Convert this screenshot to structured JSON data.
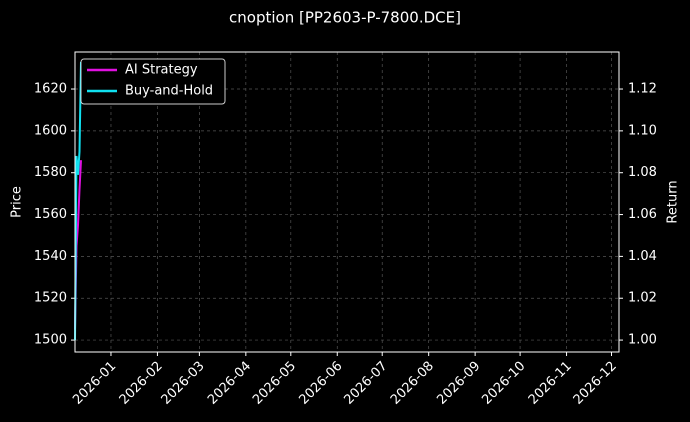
{
  "chart_data": {
    "type": "line",
    "title": "cnoption [PP2603-P-7800.DCE]",
    "ylabel": "Price",
    "y2label": "Return",
    "x": [
      "2025-12-08",
      "2025-12-09",
      "2025-12-10",
      "2025-12-11",
      "2025-12-12"
    ],
    "series": [
      {
        "name": "AI Strategy",
        "color": "#e010e0",
        "axis": "y2",
        "values": [
          1.005,
          1.045,
          1.055,
          1.072,
          1.086
        ]
      },
      {
        "name": "Buy-and-Hold",
        "color": "#10e0f0",
        "axis": "y2",
        "values": [
          1.0,
          1.088,
          1.079,
          1.09,
          1.133
        ]
      }
    ],
    "xlim": [
      "2025-12-08",
      "2026-12-06"
    ],
    "xticks": [
      {
        "value": "2026-01-01",
        "label": "2026-01"
      },
      {
        "value": "2026-02-01",
        "label": "2026-02"
      },
      {
        "value": "2026-03-01",
        "label": "2026-03"
      },
      {
        "value": "2026-04-01",
        "label": "2026-04"
      },
      {
        "value": "2026-05-01",
        "label": "2026-05"
      },
      {
        "value": "2026-06-01",
        "label": "2026-06"
      },
      {
        "value": "2026-07-01",
        "label": "2026-07"
      },
      {
        "value": "2026-08-01",
        "label": "2026-08"
      },
      {
        "value": "2026-09-01",
        "label": "2026-09"
      },
      {
        "value": "2026-10-01",
        "label": "2026-10"
      },
      {
        "value": "2026-11-01",
        "label": "2026-11"
      },
      {
        "value": "2026-12-01",
        "label": "2026-12"
      }
    ],
    "ylim": [
      1494.3,
      1637.7
    ],
    "yticks": [
      1500,
      1520,
      1540,
      1560,
      1580,
      1600,
      1620
    ],
    "y2lim": [
      0.9943,
      1.1377
    ],
    "y2ticks": [
      {
        "value": 1,
        "label": "1.00"
      },
      1.02,
      1.04,
      1.06,
      1.08,
      {
        "value": 1.1,
        "label": "1.10"
      },
      1.12
    ],
    "grid": true,
    "legend": "upper left"
  }
}
